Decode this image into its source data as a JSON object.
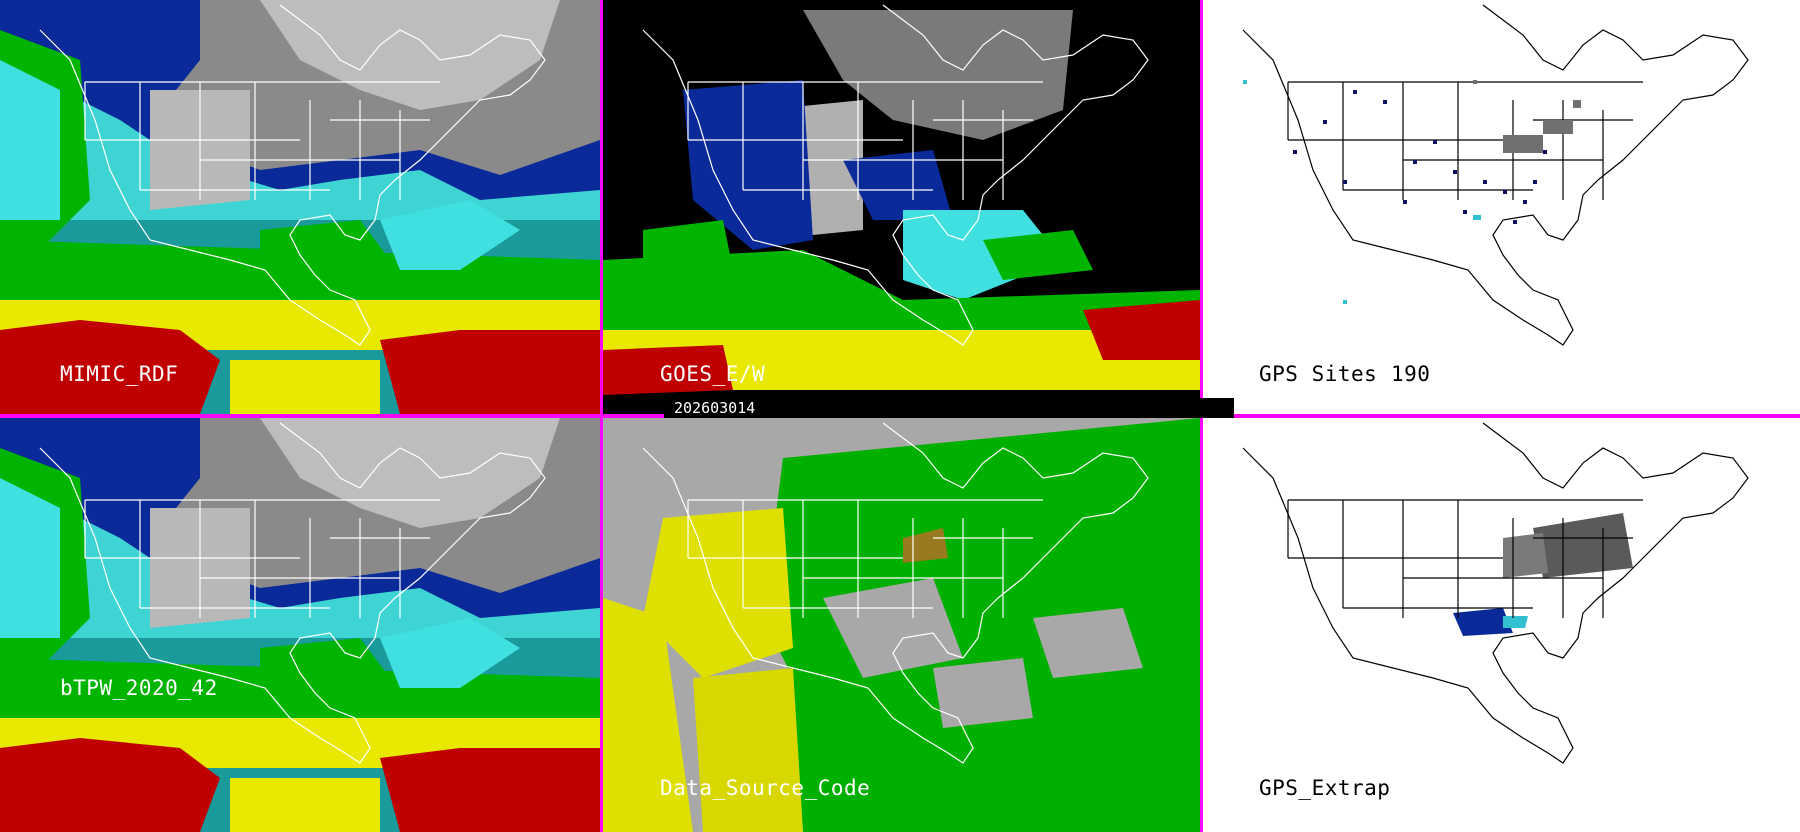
{
  "panels": {
    "top_left": {
      "label": "MIMIC_RDF"
    },
    "top_middle": {
      "label": "GOES_E/W"
    },
    "top_right": {
      "label": "GPS Sites",
      "count": "190"
    },
    "bottom_left": {
      "label": "bTPW_2020_42"
    },
    "bottom_middle": {
      "label": "Data_Source_Code"
    },
    "bottom_right": {
      "label": "GPS_Extrap"
    }
  },
  "timestamp": "202603014",
  "colors": {
    "divider": "#ff00ff",
    "tpw_red": "#c00000",
    "tpw_yellow": "#e8e800",
    "tpw_green": "#00b400",
    "tpw_cyan": "#40e0e0",
    "tpw_blue": "#0020a0",
    "source_gray": "#a8a8a8",
    "source_green": "#00b000",
    "source_yellow": "#e0e000",
    "gps_site": "#101060"
  }
}
